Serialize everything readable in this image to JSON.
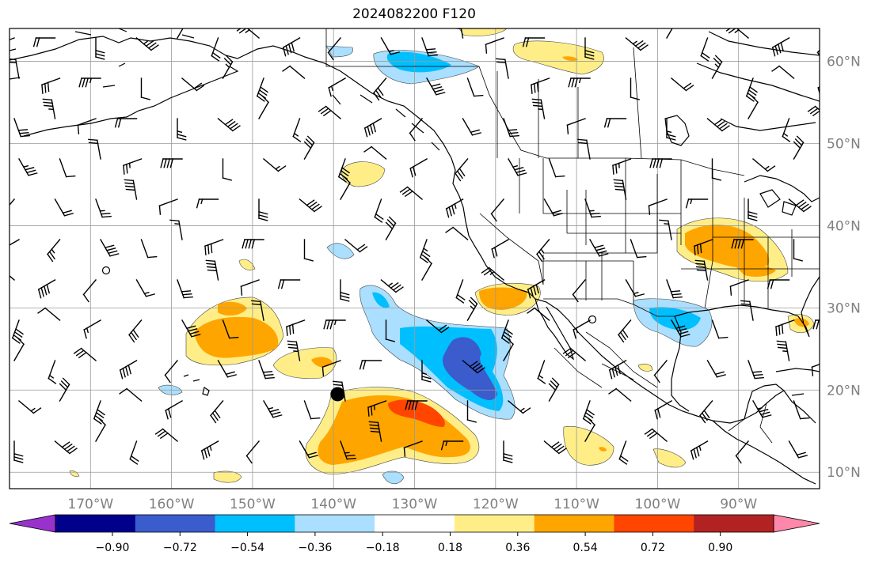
{
  "title": "2024082200 F120",
  "map": {
    "lon_range": [
      -180,
      -80
    ],
    "lat_range": [
      8,
      64
    ],
    "lon_ticks": [
      {
        "lon": -170,
        "label": "170°W"
      },
      {
        "lon": -160,
        "label": "160°W"
      },
      {
        "lon": -150,
        "label": "150°W"
      },
      {
        "lon": -140,
        "label": "140°W"
      },
      {
        "lon": -130,
        "label": "130°W"
      },
      {
        "lon": -120,
        "label": "120°W"
      },
      {
        "lon": -110,
        "label": "110°W"
      },
      {
        "lon": -100,
        "label": "100°W"
      },
      {
        "lon": -90,
        "label": "90°W"
      }
    ],
    "lat_ticks": [
      {
        "lat": 10,
        "label": "10°N"
      },
      {
        "lat": 20,
        "label": "20°N"
      },
      {
        "lat": 30,
        "label": "30°N"
      },
      {
        "lat": 40,
        "label": "40°N"
      },
      {
        "lat": 50,
        "label": "50°N"
      },
      {
        "lat": 60,
        "label": "60°N"
      }
    ],
    "gridlines": true,
    "marker": {
      "lon": -139.5,
      "lat": 19.5,
      "color": "#000000"
    },
    "wind_barbs": "black"
  },
  "colorbar": {
    "colors": [
      "#9932cc",
      "#00008b",
      "#3a5ccc",
      "#00bfff",
      "#aadfff",
      "#ffffff",
      "#ffee88",
      "#ffa500",
      "#ff4500",
      "#b22222",
      "#ff88aa"
    ],
    "ticks": [
      "−0.90",
      "−0.72",
      "−0.54",
      "−0.36",
      "−0.18",
      "0.18",
      "0.36",
      "0.54",
      "0.72",
      "0.90"
    ],
    "extend": "both"
  }
}
